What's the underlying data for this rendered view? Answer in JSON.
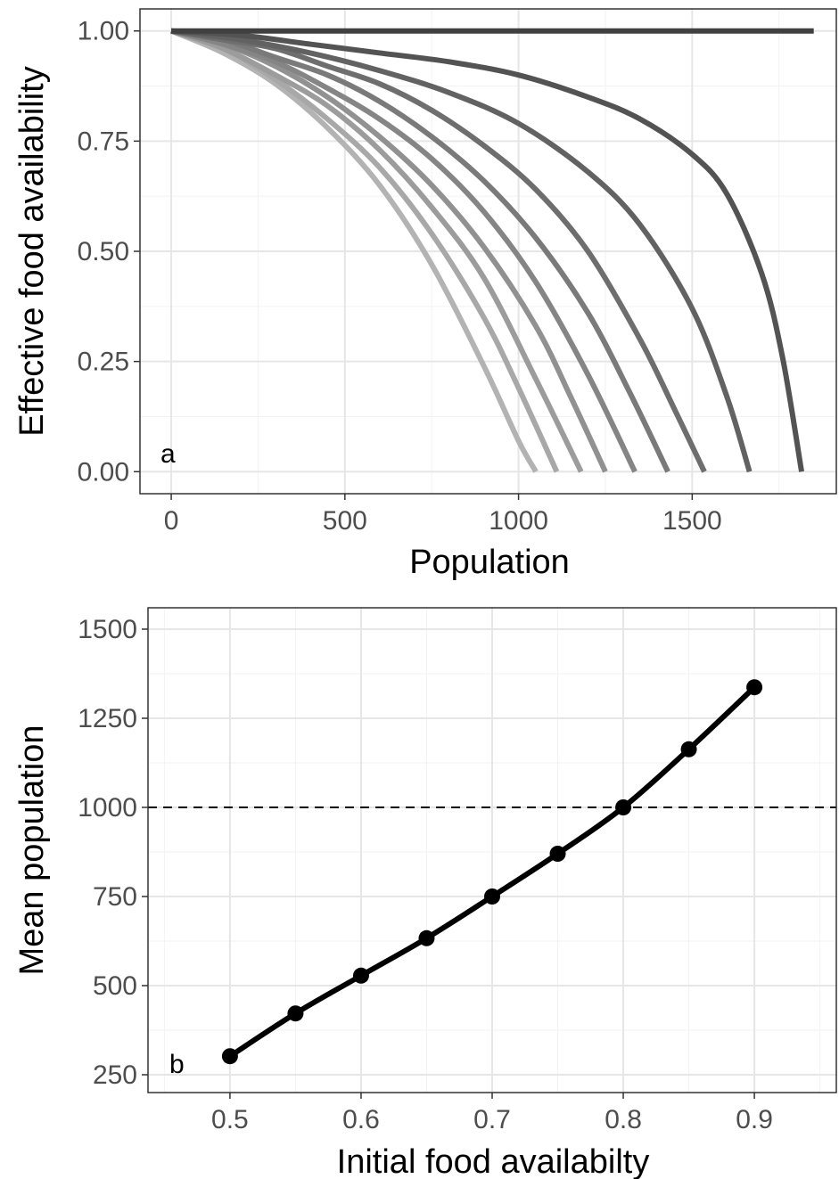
{
  "chart_data": [
    {
      "panel": "a",
      "type": "line",
      "xlabel": "Population",
      "ylabel": "Effective food availability",
      "xlim": [
        -90,
        1915
      ],
      "ylim": [
        -0.05,
        1.05
      ],
      "x_ticks": [
        0,
        500,
        1000,
        1500
      ],
      "x_tick_labels": [
        "0",
        "500",
        "1000",
        "1500"
      ],
      "y_ticks": [
        0,
        0.25,
        0.5,
        0.75,
        1.0
      ],
      "y_tick_labels": [
        "0.00",
        "0.25",
        "0.50",
        "0.75",
        "1.00"
      ],
      "grid": true,
      "legend": "none",
      "line_width": 6,
      "series_colors": [
        "#b3b3b3",
        "#a8a8a8",
        "#9c9c9c",
        "#919191",
        "#858585",
        "#7a7a7a",
        "#6e6e6e",
        "#626262",
        "#535353",
        "#404040"
      ],
      "series": [
        {
          "x": [
            0,
            150,
            300,
            450,
            600,
            750,
            900,
            1000,
            1050
          ],
          "y": [
            1.0,
            0.95,
            0.88,
            0.78,
            0.65,
            0.47,
            0.24,
            0.07,
            0.0
          ]
        },
        {
          "x": [
            0,
            150,
            300,
            450,
            600,
            750,
            900,
            1000,
            1110
          ],
          "y": [
            1.0,
            0.96,
            0.89,
            0.8,
            0.69,
            0.54,
            0.35,
            0.19,
            0.0
          ]
        },
        {
          "x": [
            0,
            150,
            300,
            450,
            600,
            750,
            900,
            1050,
            1180
          ],
          "y": [
            1.0,
            0.96,
            0.9,
            0.83,
            0.73,
            0.6,
            0.44,
            0.21,
            0.0
          ]
        },
        {
          "x": [
            0,
            150,
            300,
            450,
            600,
            750,
            900,
            1050,
            1150,
            1250
          ],
          "y": [
            1.0,
            0.97,
            0.92,
            0.85,
            0.76,
            0.65,
            0.51,
            0.33,
            0.17,
            0.0
          ]
        },
        {
          "x": [
            0,
            150,
            300,
            450,
            600,
            750,
            900,
            1050,
            1200,
            1335
          ],
          "y": [
            1.0,
            0.97,
            0.93,
            0.87,
            0.8,
            0.71,
            0.59,
            0.43,
            0.22,
            0.0
          ]
        },
        {
          "x": [
            0,
            150,
            300,
            450,
            600,
            750,
            900,
            1050,
            1200,
            1320,
            1430
          ],
          "y": [
            1.0,
            0.98,
            0.94,
            0.9,
            0.84,
            0.76,
            0.66,
            0.53,
            0.36,
            0.18,
            0.0
          ]
        },
        {
          "x": [
            0,
            150,
            300,
            450,
            600,
            750,
            900,
            1050,
            1200,
            1350,
            1450,
            1535
          ],
          "y": [
            1.0,
            0.98,
            0.96,
            0.92,
            0.88,
            0.82,
            0.74,
            0.64,
            0.5,
            0.3,
            0.14,
            0.0
          ]
        },
        {
          "x": [
            0,
            200,
            400,
            600,
            800,
            1000,
            1200,
            1350,
            1500,
            1600,
            1665
          ],
          "y": [
            1.0,
            0.98,
            0.95,
            0.91,
            0.86,
            0.79,
            0.68,
            0.56,
            0.37,
            0.17,
            0.0
          ]
        },
        {
          "x": [
            0,
            200,
            400,
            600,
            800,
            1000,
            1200,
            1350,
            1500,
            1600,
            1700,
            1760,
            1815
          ],
          "y": [
            1.0,
            0.99,
            0.97,
            0.95,
            0.93,
            0.9,
            0.85,
            0.8,
            0.72,
            0.63,
            0.45,
            0.26,
            0.0
          ]
        },
        {
          "x": [
            0,
            1850
          ],
          "y": [
            1.0,
            1.0
          ]
        }
      ]
    },
    {
      "panel": "b",
      "type": "line",
      "xlabel": "Initial food availabilty",
      "ylabel": "Mean population",
      "xlim": [
        0.4375,
        0.9625
      ],
      "ylim": [
        200,
        1560
      ],
      "x_ticks": [
        0.5,
        0.6,
        0.7,
        0.8,
        0.9
      ],
      "x_tick_labels": [
        "0.5",
        "0.6",
        "0.7",
        "0.8",
        "0.9"
      ],
      "y_ticks": [
        250,
        500,
        750,
        1000,
        1250,
        1500
      ],
      "y_tick_labels": [
        "250",
        "500",
        "750",
        "1000",
        "1250",
        "1500"
      ],
      "grid": true,
      "legend": "none",
      "line_color": "#000000",
      "reference_line": {
        "y": 1000,
        "style": "dashed"
      },
      "series": [
        {
          "x": [
            0.5,
            0.55,
            0.6,
            0.65,
            0.7,
            0.75,
            0.8,
            0.85,
            0.9
          ],
          "y": [
            302,
            422,
            528,
            633,
            750,
            870,
            1000,
            1163,
            1337
          ]
        }
      ]
    }
  ],
  "panel_a": {
    "tag": "a",
    "xlabel": "Population",
    "ylabel": "Effective food availability"
  },
  "panel_b": {
    "tag": "b",
    "xlabel": "Initial food availabilty",
    "ylabel": "Mean population"
  }
}
